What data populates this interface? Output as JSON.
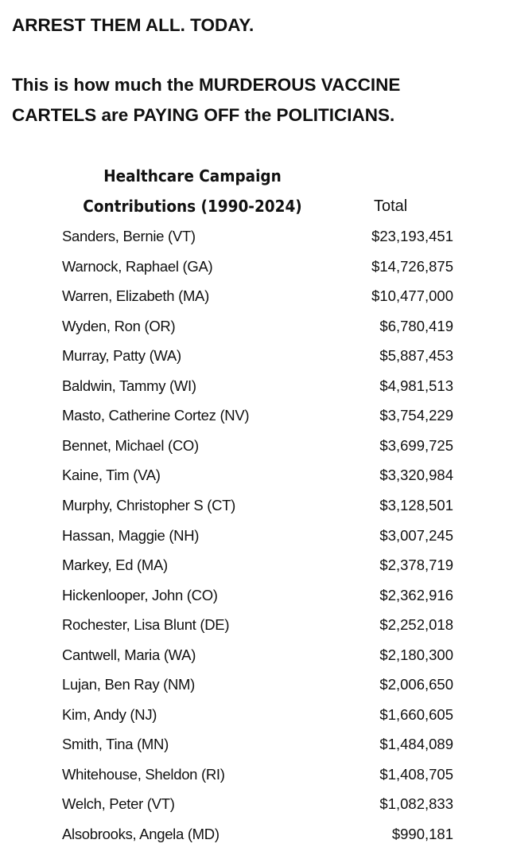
{
  "header": {
    "title": "ARREST THEM ALL. TODAY.",
    "message_lines": [
      "This is how much the MURDEROUS VACCINE",
      "CARTELS are PAYING OFF the POLITICIANS."
    ]
  },
  "table": {
    "title_lines": [
      "Healthcare Campaign",
      "Contributions (1990-2024)"
    ],
    "total_header": "Total",
    "rows": [
      [
        "Sanders, Bernie (VT)",
        "$23,193,451"
      ],
      [
        "Warnock, Raphael (GA)",
        "$14,726,875"
      ],
      [
        "Warren, Elizabeth (MA)",
        "$10,477,000"
      ],
      [
        "Wyden, Ron (OR)",
        "$6,780,419"
      ],
      [
        "Murray, Patty (WA)",
        "$5,887,453"
      ],
      [
        "Baldwin, Tammy (WI)",
        "$4,981,513"
      ],
      [
        "Masto, Catherine Cortez (NV)",
        "$3,754,229"
      ],
      [
        "Bennet, Michael (CO)",
        "$3,699,725"
      ],
      [
        "Kaine, Tim (VA)",
        "$3,320,984"
      ],
      [
        "Murphy, Christopher S (CT)",
        "$3,128,501"
      ],
      [
        "Hassan, Maggie (NH)",
        "$3,007,245"
      ],
      [
        "Markey, Ed (MA)",
        "$2,378,719"
      ],
      [
        "Hickenlooper, John (CO)",
        "$2,362,916"
      ],
      [
        "Rochester, Lisa Blunt (DE)",
        "$2,252,018"
      ],
      [
        "Cantwell, Maria (WA)",
        "$2,180,300"
      ],
      [
        "Lujan, Ben Ray (NM)",
        "$2,006,650"
      ],
      [
        "Kim, Andy (NJ)",
        "$1,660,605"
      ],
      [
        "Smith, Tina (MN)",
        "$1,484,089"
      ],
      [
        "Whitehouse, Sheldon (RI)",
        "$1,408,705"
      ],
      [
        "Welch, Peter (VT)",
        "$1,082,833"
      ],
      [
        "Alsobrooks, Angela (MD)",
        "$990,181"
      ]
    ]
  }
}
